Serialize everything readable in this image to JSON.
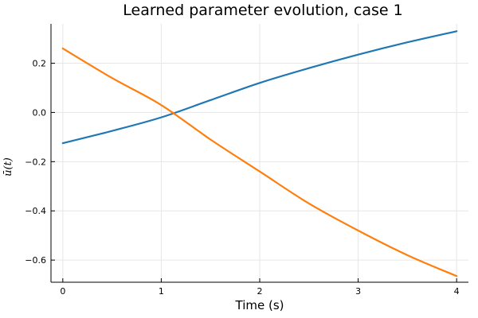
{
  "chart_data": {
    "type": "line",
    "title": "Learned parameter evolution, case 1",
    "xlabel": "Time (s)",
    "ylabel": "ū(t)",
    "xlim": [
      -0.12,
      4.12
    ],
    "ylim": [
      -0.69,
      0.36
    ],
    "xticks": [
      0,
      1,
      2,
      3,
      4
    ],
    "xtick_labels": [
      "0",
      "1",
      "2",
      "3",
      "4"
    ],
    "yticks": [
      -0.6,
      -0.4,
      -0.2,
      0.0,
      0.2
    ],
    "ytick_labels": [
      "−0.6",
      "−0.4",
      "−0.2",
      "0.0",
      "0.2"
    ],
    "grid": true,
    "legend": "none",
    "x": [
      0,
      0.5,
      1,
      1.5,
      2,
      2.5,
      3,
      3.5,
      4
    ],
    "series": [
      {
        "color": "#1f77b4",
        "values": [
          -0.125,
          -0.075,
          -0.02,
          0.05,
          0.12,
          0.18,
          0.235,
          0.285,
          0.33
        ]
      },
      {
        "color": "#ff7f0e",
        "values": [
          0.26,
          0.14,
          0.03,
          -0.11,
          -0.24,
          -0.37,
          -0.48,
          -0.58,
          -0.665
        ]
      }
    ]
  }
}
